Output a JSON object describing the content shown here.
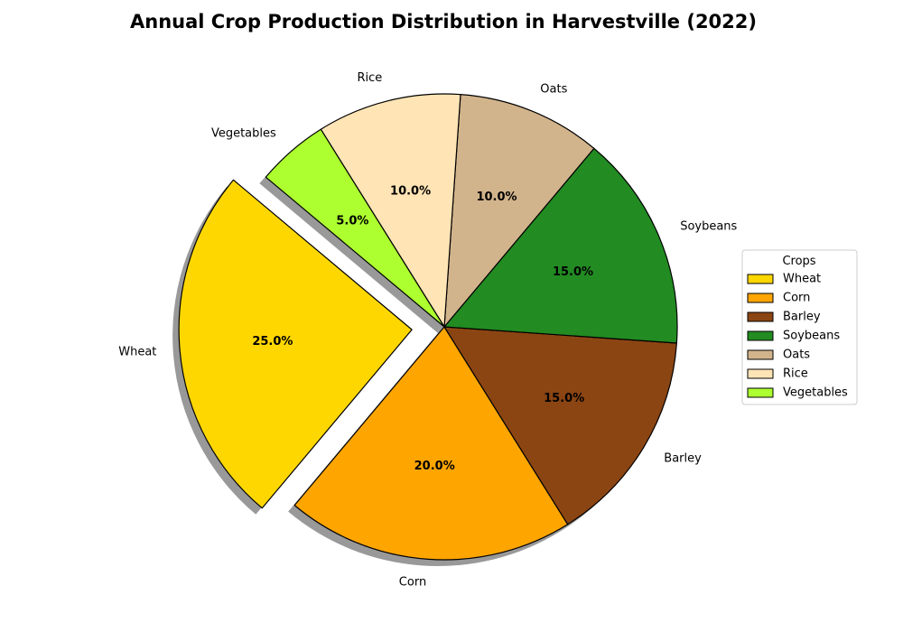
{
  "chart_data": {
    "type": "pie",
    "title": "Annual Crop Production Distribution in Harvestville (2022)",
    "categories": [
      "Wheat",
      "Corn",
      "Barley",
      "Soybeans",
      "Oats",
      "Rice",
      "Vegetables"
    ],
    "values": [
      25,
      20,
      15,
      15,
      10,
      10,
      5
    ],
    "percent_labels": [
      "25.0%",
      "20.0%",
      "15.0%",
      "15.0%",
      "10.0%",
      "10.0%",
      "5.0%"
    ],
    "colors": [
      "#FFD700",
      "#FFA500",
      "#8B4513",
      "#228B22",
      "#D2B48C",
      "#FFE4B5",
      "#ADFF2F"
    ],
    "exploded": [
      "Wheat"
    ],
    "shadow": true,
    "start_angle_deg": 140,
    "direction": "counterclockwise",
    "legend": {
      "title": "Crops",
      "placement": "center-right"
    }
  }
}
